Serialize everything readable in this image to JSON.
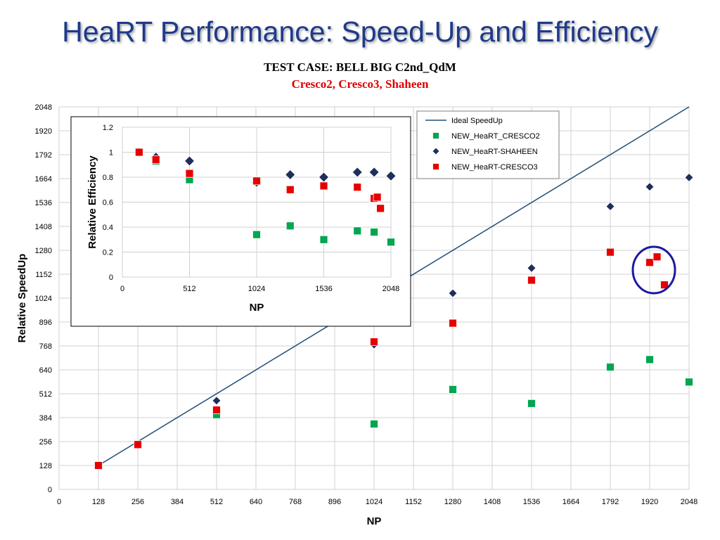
{
  "slide": {
    "title": "HeaRT Performance: Speed-Up and Efficiency",
    "test_case": "TEST CASE: BELL BIG C2nd_QdM",
    "machines": "Cresco2, Cresco3, Shaheen"
  },
  "colors": {
    "title": "#1f3a8a",
    "machines": "#e00000",
    "ideal": "#1f4e79",
    "cresco2": "#00a651",
    "shaheen": "#1f2e5a",
    "cresco3": "#e60000",
    "highlight_circle": "#1a1aa0"
  },
  "chart_data": [
    {
      "type": "scatter",
      "title": "",
      "xlabel": "NP",
      "ylabel": "Relative SpeedUp",
      "xlim": [
        0,
        2048
      ],
      "ylim": [
        0,
        2048
      ],
      "xticks": [
        0,
        128,
        256,
        384,
        512,
        640,
        768,
        896,
        1024,
        1152,
        1280,
        1408,
        1536,
        1664,
        1792,
        1920,
        2048
      ],
      "yticks": [
        0,
        128,
        256,
        384,
        512,
        640,
        768,
        896,
        1024,
        1152,
        1280,
        1408,
        1536,
        1664,
        1792,
        1920,
        2048
      ],
      "grid": true,
      "legend_position": "top-right",
      "legend": [
        "Ideal SpeedUp",
        "NEW_HeaRT_CRESCO2",
        "NEW_HeaRT-SHAHEEN",
        "NEW_HeaRT-CRESCO3"
      ],
      "annotations": [
        "ellipse highlighting CRESCO3 points near NP 1920-1968"
      ],
      "series": [
        {
          "name": "Ideal SpeedUp",
          "style": "line",
          "points": [
            [
              128,
              128
            ],
            [
              2048,
              2048
            ]
          ]
        },
        {
          "name": "NEW_HeaRT_CRESCO2",
          "style": "square",
          "points": [
            [
              128,
              128
            ],
            [
              256,
              240
            ],
            [
              512,
              400
            ],
            [
              1024,
              350
            ],
            [
              1280,
              535
            ],
            [
              1536,
              460
            ],
            [
              1792,
              655
            ],
            [
              1920,
              695
            ],
            [
              2048,
              575
            ]
          ]
        },
        {
          "name": "NEW_HeaRT-SHAHEEN",
          "style": "diamond",
          "points": [
            [
              128,
              128
            ],
            [
              256,
              235
            ],
            [
              512,
              475
            ],
            [
              1024,
              775
            ],
            [
              1280,
              1050
            ],
            [
              1536,
              1185
            ],
            [
              1792,
              1515
            ],
            [
              1920,
              1620
            ],
            [
              2048,
              1670
            ]
          ]
        },
        {
          "name": "NEW_HeaRT-CRESCO3",
          "style": "square",
          "points": [
            [
              128,
              128
            ],
            [
              256,
              240
            ],
            [
              512,
              425
            ],
            [
              1024,
              790
            ],
            [
              1280,
              890
            ],
            [
              1536,
              1120
            ],
            [
              1792,
              1270
            ],
            [
              1920,
              1215
            ],
            [
              1944,
              1245
            ],
            [
              1968,
              1095
            ]
          ]
        }
      ]
    },
    {
      "type": "scatter",
      "title": "",
      "xlabel": "NP",
      "ylabel": "Relative Efficiency",
      "xlim": [
        0,
        2048
      ],
      "ylim": [
        0,
        1.2
      ],
      "xticks": [
        0,
        512,
        1024,
        1536,
        2048
      ],
      "yticks": [
        0,
        0.2,
        0.4,
        0.6,
        0.8,
        1,
        1.2
      ],
      "grid": true,
      "legend_position": "none",
      "series": [
        {
          "name": "NEW_HeaRT_CRESCO2",
          "style": "square",
          "points": [
            [
              128,
              1.0
            ],
            [
              256,
              0.93
            ],
            [
              512,
              0.78
            ],
            [
              1024,
              0.34
            ],
            [
              1280,
              0.41
            ],
            [
              1536,
              0.3
            ],
            [
              1792,
              0.37
            ],
            [
              1920,
              0.36
            ],
            [
              2048,
              0.28
            ]
          ]
        },
        {
          "name": "NEW_HeaRT-SHAHEEN",
          "style": "diamond",
          "points": [
            [
              128,
              1.0
            ],
            [
              256,
              0.96
            ],
            [
              512,
              0.93
            ],
            [
              1024,
              0.76
            ],
            [
              1280,
              0.82
            ],
            [
              1536,
              0.8
            ],
            [
              1792,
              0.84
            ],
            [
              1920,
              0.84
            ],
            [
              2048,
              0.81
            ]
          ]
        },
        {
          "name": "NEW_HeaRT-CRESCO3",
          "style": "square",
          "points": [
            [
              128,
              1.0
            ],
            [
              256,
              0.94
            ],
            [
              512,
              0.83
            ],
            [
              1024,
              0.77
            ],
            [
              1280,
              0.7
            ],
            [
              1536,
              0.73
            ],
            [
              1792,
              0.72
            ],
            [
              1920,
              0.63
            ],
            [
              1944,
              0.64
            ],
            [
              1968,
              0.55
            ]
          ]
        }
      ]
    }
  ]
}
